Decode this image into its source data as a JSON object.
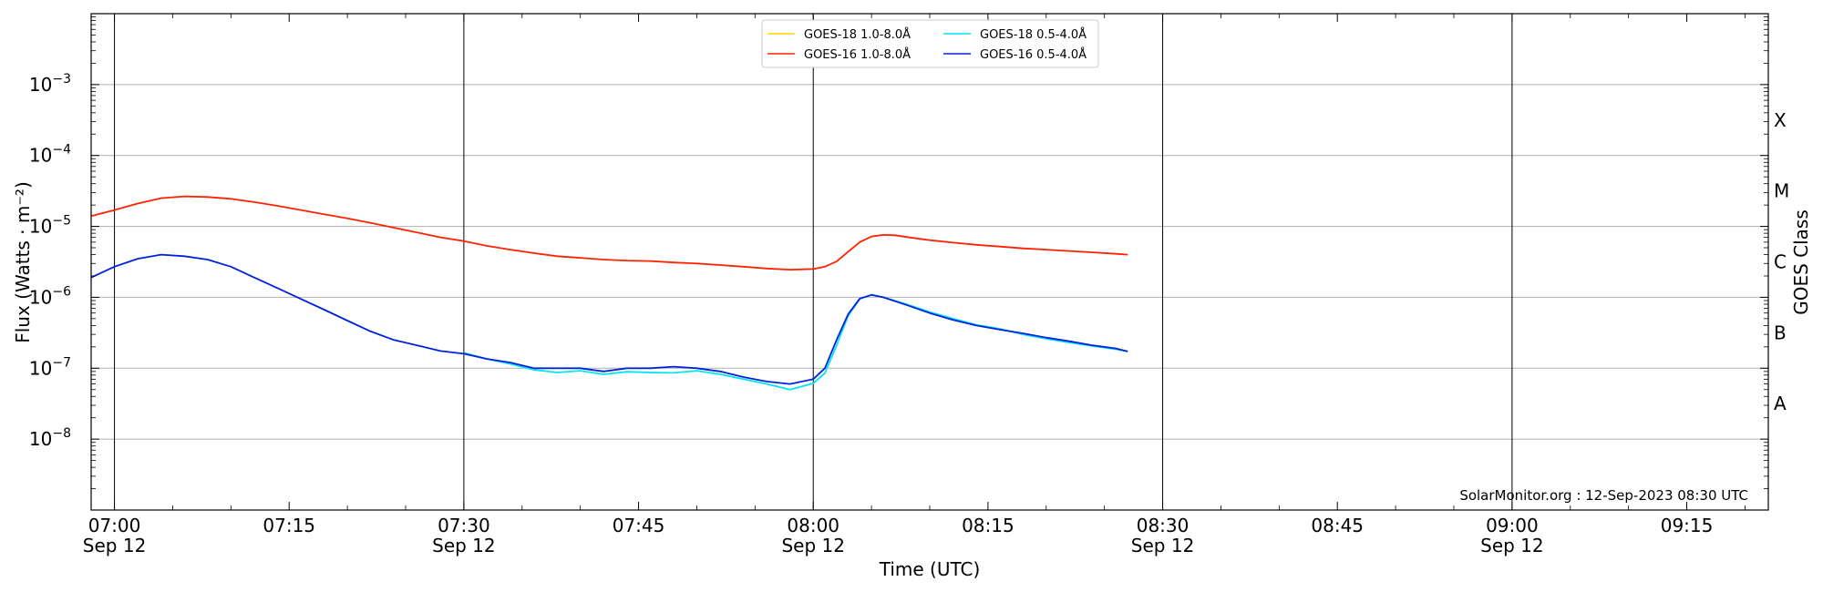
{
  "chart_data": {
    "type": "line",
    "xlabel": "Time (UTC)",
    "ylabel": "Flux (Watts · m⁻²)",
    "y2label": "GOES Class",
    "yscale": "log",
    "ylim": [
      1e-09,
      0.01
    ],
    "xlim": [
      "06:58",
      "09:22"
    ],
    "grid": "horizontal at decades; vertical at 30-minute marks",
    "legend_position": "top-center",
    "annotation": "SolarMonitor.org : 12-Sep-2023 08:30 UTC",
    "x_ticks": [
      {
        "time": "07:00",
        "label": "07:00",
        "sub": "Sep 12"
      },
      {
        "time": "07:15",
        "label": "07:15",
        "sub": ""
      },
      {
        "time": "07:30",
        "label": "07:30",
        "sub": "Sep 12"
      },
      {
        "time": "07:45",
        "label": "07:45",
        "sub": ""
      },
      {
        "time": "08:00",
        "label": "08:00",
        "sub": "Sep 12"
      },
      {
        "time": "08:15",
        "label": "08:15",
        "sub": ""
      },
      {
        "time": "08:30",
        "label": "08:30",
        "sub": "Sep 12"
      },
      {
        "time": "08:45",
        "label": "08:45",
        "sub": ""
      },
      {
        "time": "09:00",
        "label": "09:00",
        "sub": "Sep 12"
      },
      {
        "time": "09:15",
        "label": "09:15",
        "sub": ""
      }
    ],
    "y_ticks": [
      {
        "value": 1e-08,
        "base": "10",
        "exp": "−8"
      },
      {
        "value": 1e-07,
        "base": "10",
        "exp": "−7"
      },
      {
        "value": 1e-06,
        "base": "10",
        "exp": "−6"
      },
      {
        "value": 1e-05,
        "base": "10",
        "exp": "−5"
      },
      {
        "value": 0.0001,
        "base": "10",
        "exp": "−4"
      },
      {
        "value": 0.001,
        "base": "10",
        "exp": "−3"
      }
    ],
    "class_labels": [
      {
        "label": "A",
        "value": 3.16e-08
      },
      {
        "label": "B",
        "value": 3.16e-07
      },
      {
        "label": "C",
        "value": 3.16e-06
      },
      {
        "label": "M",
        "value": 3.16e-05
      },
      {
        "label": "X",
        "value": 0.000316
      }
    ],
    "series": [
      {
        "name": "GOES-18 1.0-8.0Å",
        "color": "#ffd700",
        "x": [],
        "y": []
      },
      {
        "name": "GOES-16 1.0-8.0Å",
        "color": "#ff2200",
        "x": [
          "06:58",
          "07:00",
          "07:02",
          "07:04",
          "07:06",
          "07:08",
          "07:10",
          "07:12",
          "07:14",
          "07:16",
          "07:18",
          "07:20",
          "07:22",
          "07:24",
          "07:26",
          "07:28",
          "07:30",
          "07:32",
          "07:34",
          "07:36",
          "07:38",
          "07:40",
          "07:42",
          "07:44",
          "07:46",
          "07:48",
          "07:50",
          "07:52",
          "07:54",
          "07:56",
          "07:58",
          "08:00",
          "08:01",
          "08:02",
          "08:03",
          "08:04",
          "08:05",
          "08:06",
          "08:07",
          "08:08",
          "08:10",
          "08:12",
          "08:14",
          "08:16",
          "08:18",
          "08:20",
          "08:22",
          "08:24",
          "08:26",
          "08:27"
        ],
        "y": [
          1.4e-05,
          1.7e-05,
          2.1e-05,
          2.5e-05,
          2.65e-05,
          2.6e-05,
          2.45e-05,
          2.2e-05,
          1.95e-05,
          1.7e-05,
          1.48e-05,
          1.3e-05,
          1.12e-05,
          9.6e-06,
          8.2e-06,
          7e-06,
          6.2e-06,
          5.3e-06,
          4.7e-06,
          4.2e-06,
          3.8e-06,
          3.6e-06,
          3.4e-06,
          3.3e-06,
          3.25e-06,
          3.1e-06,
          3e-06,
          2.85e-06,
          2.7e-06,
          2.55e-06,
          2.45e-06,
          2.5e-06,
          2.7e-06,
          3.2e-06,
          4.4e-06,
          6e-06,
          7.2e-06,
          7.6e-06,
          7.5e-06,
          7.1e-06,
          6.4e-06,
          5.9e-06,
          5.5e-06,
          5.2e-06,
          4.9e-06,
          4.7e-06,
          4.5e-06,
          4.3e-06,
          4.1e-06,
          4e-06
        ]
      },
      {
        "name": "GOES-18 0.5-4.0Å",
        "color": "#00e5ee",
        "x": [
          "07:30",
          "07:32",
          "07:34",
          "07:36",
          "07:38",
          "07:40",
          "07:42",
          "07:44",
          "07:46",
          "07:48",
          "07:50",
          "07:52",
          "07:54",
          "07:56",
          "07:58",
          "08:00",
          "08:01",
          "08:02",
          "08:03",
          "08:04",
          "08:05",
          "08:06",
          "08:08",
          "08:10",
          "08:12",
          "08:14",
          "08:16",
          "08:18",
          "08:20",
          "08:22",
          "08:24",
          "08:26",
          "08:27"
        ],
        "y": [
          1.65e-07,
          1.35e-07,
          1.15e-07,
          9.5e-08,
          8.7e-08,
          9.2e-08,
          8.2e-08,
          8.9e-08,
          8.7e-08,
          8.6e-08,
          9.2e-08,
          8.2e-08,
          7e-08,
          6e-08,
          5e-08,
          6.1e-08,
          8.5e-08,
          2.1e-07,
          5.5e-07,
          9.5e-07,
          1.08e-06,
          1e-06,
          8e-07,
          6.2e-07,
          5e-07,
          4.1e-07,
          3.6e-07,
          3e-07,
          2.6e-07,
          2.3e-07,
          2.05e-07,
          1.85e-07,
          1.72e-07
        ]
      },
      {
        "name": "GOES-16 0.5-4.0Å",
        "color": "#0022dd",
        "x": [
          "06:58",
          "07:00",
          "07:02",
          "07:04",
          "07:06",
          "07:08",
          "07:10",
          "07:12",
          "07:14",
          "07:16",
          "07:18",
          "07:20",
          "07:22",
          "07:24",
          "07:26",
          "07:28",
          "07:30",
          "07:32",
          "07:34",
          "07:36",
          "07:38",
          "07:40",
          "07:42",
          "07:44",
          "07:46",
          "07:48",
          "07:50",
          "07:52",
          "07:54",
          "07:56",
          "07:58",
          "08:00",
          "08:01",
          "08:02",
          "08:03",
          "08:04",
          "08:05",
          "08:06",
          "08:08",
          "08:10",
          "08:12",
          "08:14",
          "08:16",
          "08:18",
          "08:20",
          "08:22",
          "08:24",
          "08:26",
          "08:27"
        ],
        "y": [
          1.9e-06,
          2.7e-06,
          3.5e-06,
          4e-06,
          3.8e-06,
          3.4e-06,
          2.7e-06,
          1.9e-06,
          1.35e-06,
          9.5e-07,
          6.7e-07,
          4.7e-07,
          3.3e-07,
          2.5e-07,
          2.1e-07,
          1.75e-07,
          1.6e-07,
          1.35e-07,
          1.2e-07,
          1e-07,
          1e-07,
          1e-07,
          9e-08,
          1e-07,
          1e-07,
          1.05e-07,
          1e-07,
          9e-08,
          7.5e-08,
          6.5e-08,
          6e-08,
          7e-08,
          1e-07,
          2.5e-07,
          5.8e-07,
          9.6e-07,
          1.08e-06,
          1e-06,
          7.8e-07,
          6e-07,
          4.8e-07,
          4e-07,
          3.5e-07,
          3.1e-07,
          2.7e-07,
          2.4e-07,
          2.1e-07,
          1.9e-07,
          1.72e-07
        ]
      }
    ]
  }
}
